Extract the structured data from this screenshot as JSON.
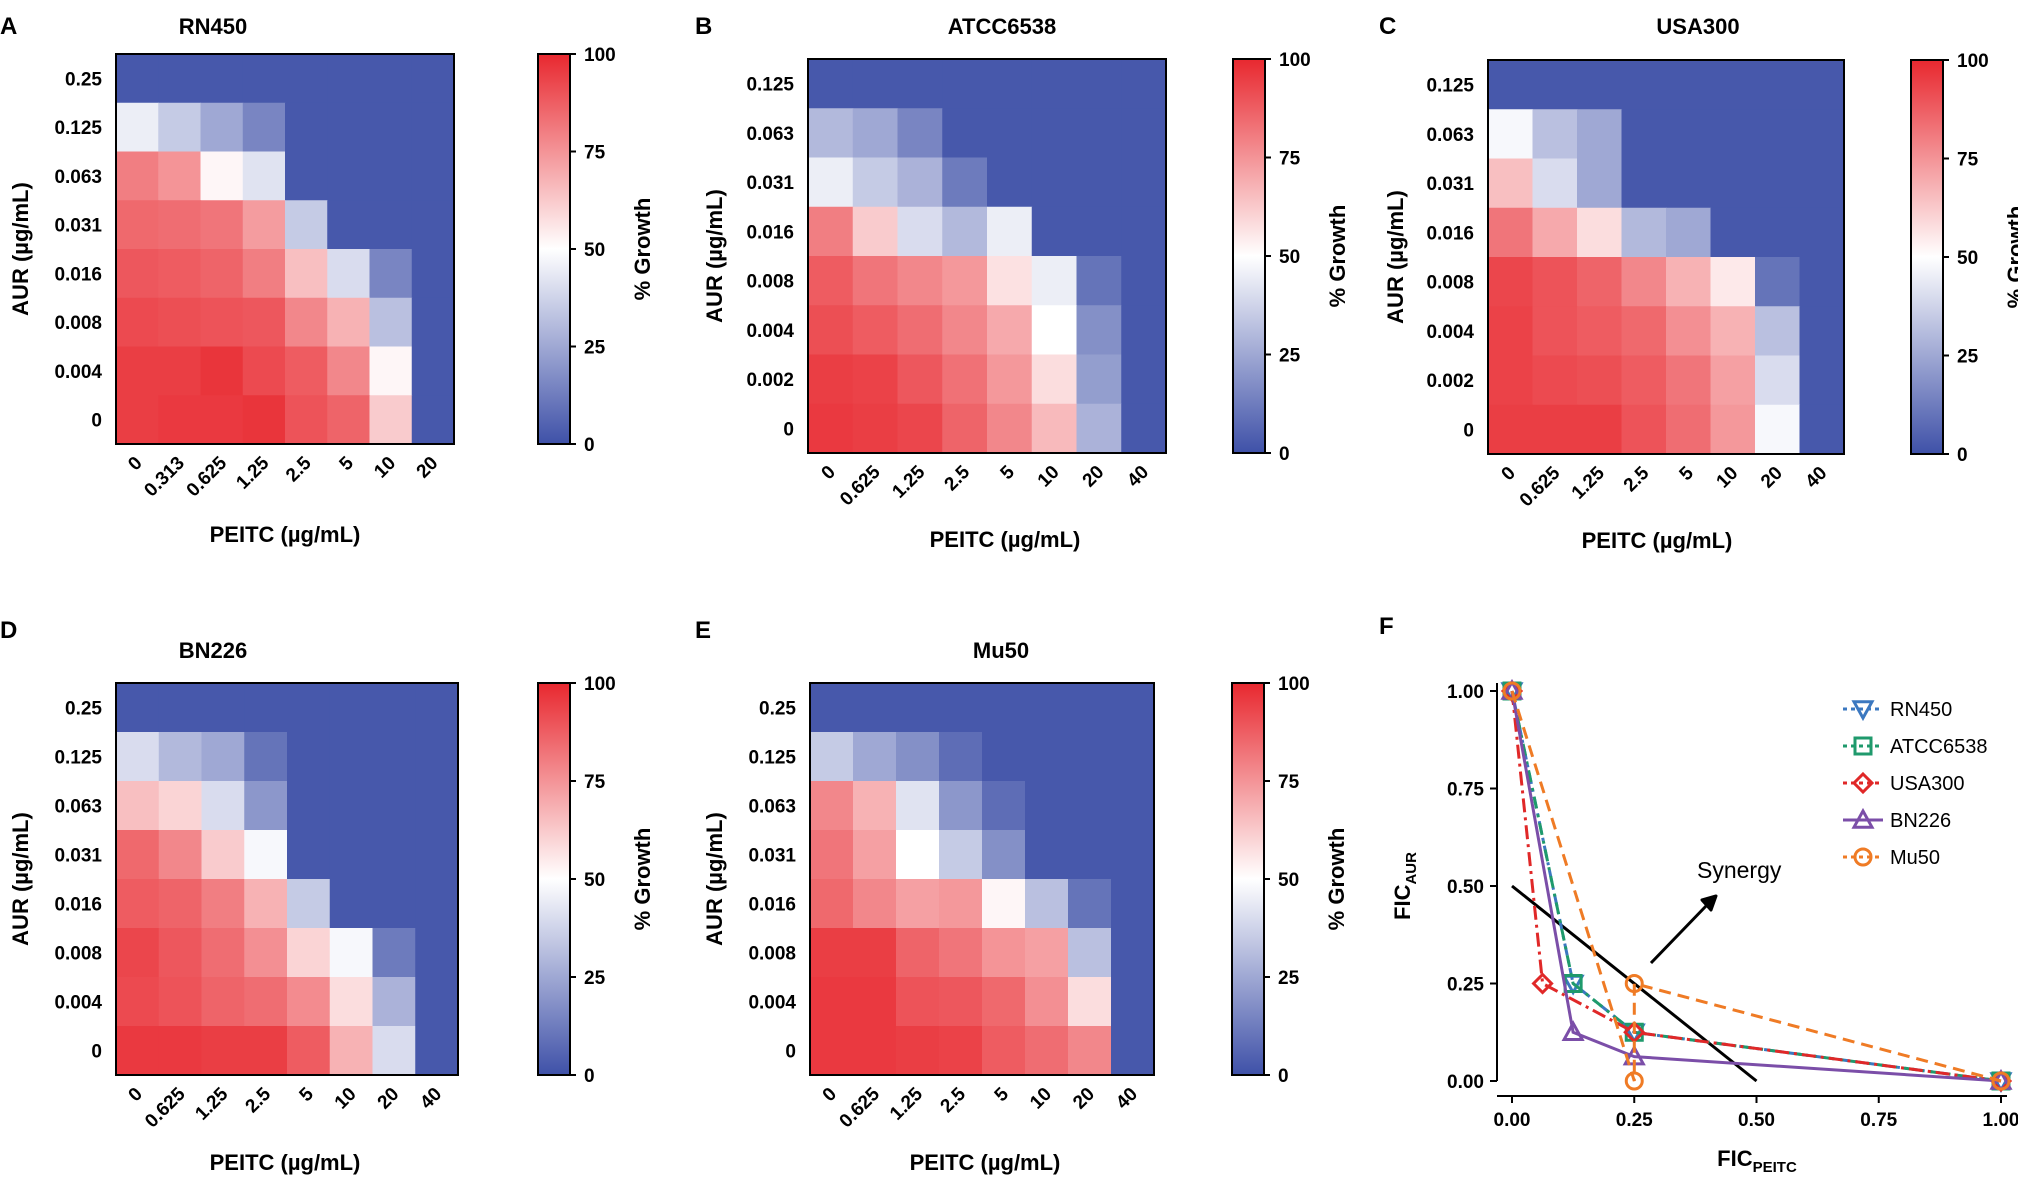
{
  "figure": {
    "colorbar": {
      "ticks": [
        "100",
        "75",
        "50",
        "25",
        "0"
      ],
      "label": "% Growth"
    },
    "colors": {
      "low": "#3f51a8",
      "mid": "#ffffff",
      "high": "#e8282f"
    }
  },
  "chart_data": [
    {
      "type": "heatmap",
      "panel": "A",
      "title": "RN450",
      "xlabel": "PEITC (µg/mL)",
      "ylabel": "AUR (µg/mL)",
      "x_categories": [
        "0",
        "0.313",
        "0.625",
        "1.25",
        "2.5",
        "5",
        "10",
        "20"
      ],
      "y_categories": [
        "0.25",
        "0.125",
        "0.063",
        "0.031",
        "0.016",
        "0.008",
        "0.004",
        "0"
      ],
      "values": [
        [
          2,
          2,
          2,
          2,
          2,
          2,
          2,
          2
        ],
        [
          45,
          35,
          25,
          15,
          2,
          2,
          2,
          2
        ],
        [
          80,
          75,
          52,
          42,
          2,
          2,
          2,
          2
        ],
        [
          85,
          84,
          82,
          73,
          35,
          2,
          2,
          2
        ],
        [
          89,
          88,
          86,
          80,
          65,
          40,
          15,
          2
        ],
        [
          92,
          91,
          90,
          89,
          78,
          68,
          32,
          2
        ],
        [
          95,
          95,
          97,
          92,
          88,
          78,
          52,
          2
        ],
        [
          95,
          96,
          96,
          97,
          90,
          86,
          62,
          2
        ]
      ],
      "zlim": [
        0,
        100
      ]
    },
    {
      "type": "heatmap",
      "panel": "B",
      "title": "ATCC6538",
      "xlabel": "PEITC (µg/mL)",
      "ylabel": "AUR (µg/mL)",
      "x_categories": [
        "0",
        "0.625",
        "1.25",
        "2.5",
        "5",
        "10",
        "20",
        "40"
      ],
      "y_categories": [
        "0.125",
        "0.063",
        "0.031",
        "0.016",
        "0.008",
        "0.004",
        "0.002",
        "0"
      ],
      "values": [
        [
          2,
          2,
          2,
          2,
          2,
          2,
          2,
          2
        ],
        [
          30,
          25,
          15,
          2,
          2,
          2,
          2,
          2
        ],
        [
          45,
          35,
          28,
          12,
          2,
          2,
          2,
          2
        ],
        [
          80,
          62,
          40,
          30,
          45,
          2,
          2,
          2
        ],
        [
          88,
          82,
          78,
          74,
          57,
          45,
          10,
          2
        ],
        [
          91,
          88,
          84,
          78,
          70,
          50,
          18,
          2
        ],
        [
          95,
          94,
          89,
          83,
          74,
          58,
          22,
          2
        ],
        [
          96,
          95,
          93,
          86,
          78,
          66,
          28,
          2
        ]
      ],
      "zlim": [
        0,
        100
      ]
    },
    {
      "type": "heatmap",
      "panel": "C",
      "title": "USA300",
      "xlabel": "PEITC (µg/mL)",
      "ylabel": "AUR (µg/mL)",
      "x_categories": [
        "0",
        "0.625",
        "1.25",
        "2.5",
        "5",
        "10",
        "20",
        "40"
      ],
      "y_categories": [
        "0.125",
        "0.063",
        "0.031",
        "0.016",
        "0.008",
        "0.004",
        "0.002",
        "0"
      ],
      "values": [
        [
          2,
          2,
          2,
          2,
          2,
          2,
          2,
          2
        ],
        [
          48,
          32,
          25,
          2,
          2,
          2,
          2,
          2
        ],
        [
          65,
          40,
          25,
          2,
          2,
          2,
          2,
          2
        ],
        [
          82,
          70,
          58,
          30,
          25,
          2,
          2,
          2
        ],
        [
          93,
          90,
          86,
          78,
          68,
          55,
          10,
          2
        ],
        [
          94,
          90,
          88,
          85,
          76,
          68,
          32,
          2
        ],
        [
          94,
          92,
          91,
          88,
          82,
          72,
          40,
          2
        ],
        [
          95,
          95,
          95,
          90,
          84,
          74,
          48,
          2
        ]
      ],
      "zlim": [
        0,
        100
      ]
    },
    {
      "type": "heatmap",
      "panel": "D",
      "title": "BN226",
      "xlabel": "PEITC (µg/mL)",
      "ylabel": "AUR (µg/mL)",
      "x_categories": [
        "0",
        "0.625",
        "1.25",
        "2.5",
        "5",
        "10",
        "20",
        "40"
      ],
      "y_categories": [
        "0.25",
        "0.125",
        "0.063",
        "0.031",
        "0.016",
        "0.008",
        "0.004",
        "0"
      ],
      "values": [
        [
          2,
          2,
          2,
          2,
          2,
          2,
          2,
          2
        ],
        [
          40,
          30,
          25,
          10,
          2,
          2,
          2,
          2
        ],
        [
          65,
          60,
          40,
          20,
          2,
          2,
          2,
          2
        ],
        [
          85,
          78,
          62,
          48,
          2,
          2,
          2,
          2
        ],
        [
          88,
          86,
          80,
          68,
          35,
          2,
          2,
          2
        ],
        [
          93,
          89,
          84,
          76,
          60,
          48,
          12,
          2
        ],
        [
          92,
          90,
          86,
          84,
          77,
          58,
          28,
          2
        ],
        [
          96,
          96,
          95,
          95,
          88,
          68,
          40,
          2
        ]
      ],
      "zlim": [
        0,
        100
      ]
    },
    {
      "type": "heatmap",
      "panel": "E",
      "title": "Mu50",
      "xlabel": "PEITC (µg/mL)",
      "ylabel": "AUR (µg/mL)",
      "x_categories": [
        "0",
        "0.625",
        "1.25",
        "2.5",
        "5",
        "10",
        "20",
        "40"
      ],
      "y_categories": [
        "0.25",
        "0.125",
        "0.063",
        "0.031",
        "0.016",
        "0.008",
        "0.004",
        "0"
      ],
      "values": [
        [
          2,
          2,
          2,
          2,
          2,
          2,
          2,
          2
        ],
        [
          35,
          25,
          18,
          8,
          2,
          2,
          2,
          2
        ],
        [
          78,
          68,
          42,
          20,
          8,
          2,
          2,
          2
        ],
        [
          82,
          72,
          50,
          35,
          18,
          2,
          2,
          2
        ],
        [
          85,
          78,
          72,
          74,
          52,
          32,
          10,
          2
        ],
        [
          95,
          95,
          86,
          82,
          75,
          72,
          32,
          2
        ],
        [
          96,
          96,
          90,
          89,
          85,
          76,
          58,
          2
        ],
        [
          96,
          96,
          95,
          94,
          88,
          84,
          78,
          2
        ]
      ],
      "zlim": [
        0,
        100
      ]
    },
    {
      "type": "line",
      "panel": "F",
      "xlabel_main": "FIC",
      "xlabel_sub": "PEITC",
      "ylabel_main": "FIC",
      "ylabel_sub": "AUR",
      "xlim": [
        0,
        1.0
      ],
      "ylim": [
        0,
        1.0
      ],
      "x_ticks": [
        "0.00",
        "0.25",
        "0.50",
        "0.75",
        "1.00"
      ],
      "y_ticks": [
        "0.00",
        "0.25",
        "0.50",
        "0.75",
        "1.00"
      ],
      "annotation": "Synergy",
      "series": [
        {
          "name": "RN450",
          "color": "#3b78c0",
          "dash": "3 5 12 5",
          "marker": "triangle-down",
          "x": [
            0,
            0.125,
            0.25,
            1.0
          ],
          "y": [
            1.0,
            0.25,
            0.125,
            0
          ]
        },
        {
          "name": "ATCC6538",
          "color": "#1f9a6c",
          "dash": "12 6 3 6",
          "marker": "square",
          "x": [
            0,
            0.125,
            0.25,
            1.0
          ],
          "y": [
            1.0,
            0.25,
            0.125,
            0
          ]
        },
        {
          "name": "USA300",
          "color": "#e02828",
          "dash": "14 5 3 5",
          "marker": "diamond",
          "x": [
            0,
            0.0625,
            0.25,
            1.0
          ],
          "y": [
            1.0,
            0.25,
            0.125,
            0
          ]
        },
        {
          "name": "BN226",
          "color": "#7b4ea8",
          "dash": "",
          "marker": "triangle-up",
          "x": [
            0,
            0.125,
            0.25,
            1.0
          ],
          "y": [
            1.0,
            0.125,
            0.0625,
            0
          ]
        },
        {
          "name": "Mu50",
          "color": "#ef7b25",
          "dash": "12 7",
          "marker": "circle",
          "x": [
            0,
            0.25,
            0.25,
            1.0
          ],
          "y": [
            1.0,
            0,
            0.25,
            0
          ]
        }
      ],
      "additivity_line": {
        "x": [
          0,
          0.5
        ],
        "y": [
          0.5,
          0
        ]
      }
    }
  ]
}
